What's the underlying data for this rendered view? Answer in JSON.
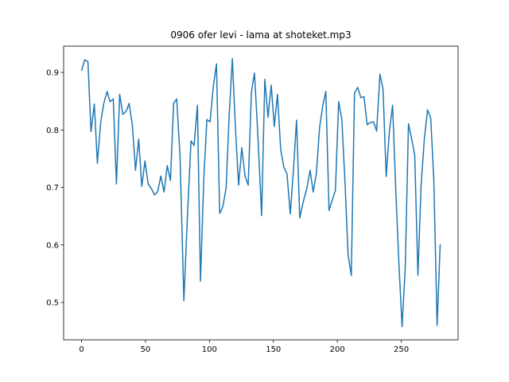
{
  "chart_data": {
    "type": "line",
    "title": "0906 ofer levi - lama at shoteket.mp3",
    "x": [
      0,
      2.5,
      5,
      7.4,
      10,
      12.4,
      15,
      17.4,
      20,
      22.3,
      24.8,
      27.3,
      29.8,
      32.3,
      34.7,
      37.2,
      39.7,
      42.2,
      44.7,
      47.1,
      49.6,
      52.1,
      54.6,
      57,
      59.6,
      62,
      64.5,
      67,
      69.5,
      72,
      74.4,
      77,
      80,
      83,
      85.6,
      88,
      90.6,
      93,
      95.6,
      98,
      100.5,
      103,
      105.5,
      108,
      110.4,
      113,
      115.4,
      117.9,
      120.3,
      122.8,
      125.3,
      127.8,
      130.3,
      132.8,
      135.2,
      137.7,
      140.8,
      143.3,
      145.8,
      148.3,
      150.7,
      153.2,
      155.7,
      158.2,
      160.6,
      163.2,
      165.6,
      168.1,
      170.6,
      173.1,
      176.2,
      178.7,
      181.1,
      183.6,
      186.1,
      188.6,
      191,
      193.5,
      196,
      198.5,
      201,
      203.5,
      206,
      208.4,
      210.9,
      213.4,
      215.9,
      218.4,
      220.8,
      223.3,
      225.8,
      228.3,
      230.7,
      233.3,
      235.7,
      238.2,
      240.7,
      243.2,
      245.7,
      248.1,
      250.6,
      253.1,
      255.6,
      258.1,
      260.5,
      263,
      265.5,
      268,
      270.5,
      273,
      275.4,
      278,
      280.4
    ],
    "series": [
      {
        "color": "#1f77b4",
        "values": [
          0.903,
          0.922,
          0.919,
          0.797,
          0.845,
          0.742,
          0.814,
          0.846,
          0.867,
          0.849,
          0.854,
          0.706,
          0.862,
          0.827,
          0.832,
          0.846,
          0.809,
          0.73,
          0.784,
          0.702,
          0.746,
          0.706,
          0.698,
          0.687,
          0.693,
          0.72,
          0.692,
          0.738,
          0.712,
          0.846,
          0.854,
          0.755,
          0.503,
          0.66,
          0.781,
          0.773,
          0.843,
          0.537,
          0.716,
          0.818,
          0.814,
          0.875,
          0.915,
          0.655,
          0.666,
          0.698,
          0.824,
          0.924,
          0.804,
          0.704,
          0.769,
          0.72,
          0.704,
          0.865,
          0.899,
          0.798,
          0.651,
          0.888,
          0.822,
          0.878,
          0.806,
          0.862,
          0.766,
          0.735,
          0.724,
          0.654,
          0.728,
          0.817,
          0.647,
          0.673,
          0.699,
          0.73,
          0.692,
          0.724,
          0.804,
          0.842,
          0.867,
          0.66,
          0.678,
          0.695,
          0.849,
          0.818,
          0.708,
          0.583,
          0.547,
          0.864,
          0.874,
          0.856,
          0.858,
          0.809,
          0.813,
          0.814,
          0.798,
          0.897,
          0.871,
          0.719,
          0.798,
          0.843,
          0.694,
          0.569,
          0.458,
          0.561,
          0.811,
          0.784,
          0.756,
          0.547,
          0.705,
          0.784,
          0.835,
          0.821,
          0.714,
          0.46,
          0.601
        ]
      }
    ],
    "xlim": [
      -14,
      294.4
    ],
    "ylim": [
      0.435,
      0.9457
    ],
    "xticks": [
      0,
      50,
      100,
      150,
      200,
      250
    ],
    "yticks": [
      0.5,
      0.6,
      0.7,
      0.8,
      0.9
    ]
  }
}
